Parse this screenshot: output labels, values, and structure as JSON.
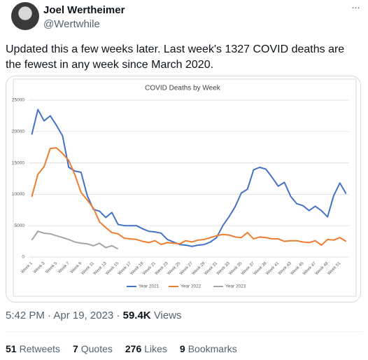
{
  "tweet": {
    "name": "Joel Wertheimer",
    "handle": "@Wertwhile",
    "more": "···",
    "text": "Updated this a few weeks later. Last week's 1327 COVID deaths are the fewest in any week since March 2020.",
    "time": "5:42 PM · Apr 19, 2023 ·",
    "views_count": "59.4K",
    "views_label": "Views",
    "stats": [
      {
        "count": "51",
        "label": "Retweets"
      },
      {
        "count": "7",
        "label": "Quotes"
      },
      {
        "count": "276",
        "label": "Likes"
      },
      {
        "count": "9",
        "label": "Bookmarks"
      }
    ]
  },
  "chart_data": {
    "type": "line",
    "title": "COVID Deaths by Week",
    "categories": [
      "Week 1",
      null,
      "Week 3",
      null,
      "Week 5",
      null,
      "Week 7",
      null,
      "Week 9",
      null,
      "Week 11",
      null,
      "Week 13",
      null,
      "Week 15",
      null,
      "Week 17",
      null,
      "Week 19",
      null,
      "Week 21",
      null,
      "Week 23",
      null,
      "Week 25",
      null,
      "Week 27",
      null,
      "Week 29",
      null,
      "Week 31",
      null,
      "Week 33",
      null,
      "Week 35",
      null,
      "Week 37",
      null,
      "Week 39",
      null,
      "Week 41",
      null,
      "Week 43",
      null,
      "Week 45",
      null,
      "Week 47",
      null,
      "Week 49",
      null,
      "Week 51",
      null
    ],
    "ylim": [
      0,
      25000
    ],
    "yticks": [
      0,
      5000,
      10000,
      15000,
      20000,
      25000
    ],
    "grid": true,
    "legend": "bottom",
    "series": [
      {
        "name": "Year 2021",
        "color": "#4472c4",
        "values": [
          19500,
          23500,
          21700,
          22500,
          21000,
          19300,
          14300,
          13700,
          13500,
          9800,
          7600,
          7300,
          6300,
          7100,
          5200,
          5000,
          5000,
          5000,
          4500,
          4100,
          4000,
          3800,
          2800,
          2400,
          2000,
          1900,
          1700,
          1900,
          2000,
          2400,
          3100,
          5000,
          6400,
          8000,
          10200,
          10800,
          13900,
          14300,
          14000,
          12700,
          11300,
          11900,
          9700,
          8500,
          8200,
          7400,
          8100,
          7400,
          6400,
          9800,
          11800,
          10100
        ]
      },
      {
        "name": "Year 2022",
        "color": "#ed7d31",
        "values": [
          9600,
          13200,
          14400,
          17300,
          17400,
          16500,
          15400,
          13100,
          10300,
          9100,
          7800,
          5600,
          4700,
          3900,
          3700,
          3000,
          2900,
          2800,
          2500,
          2300,
          2600,
          2000,
          2300,
          2200,
          2100,
          2600,
          2400,
          2700,
          2800,
          3100,
          3400,
          3600,
          3500,
          3200,
          3100,
          3900,
          2900,
          3200,
          3100,
          2900,
          2900,
          2500,
          2600,
          2600,
          2400,
          2300,
          2600,
          1900,
          2800,
          2700,
          3100,
          2500
        ]
      },
      {
        "name": "Year 2023",
        "color": "#a5a5a5",
        "values": [
          2700,
          4100,
          3800,
          3700,
          3400,
          3100,
          2800,
          2400,
          2200,
          2100,
          1800,
          2200,
          1500,
          1800,
          1300,
          null,
          null,
          null,
          null,
          null,
          null,
          null,
          null,
          null,
          null,
          null,
          null,
          null,
          null,
          null,
          null,
          null,
          null,
          null,
          null,
          null,
          null,
          null,
          null,
          null,
          null,
          null,
          null,
          null,
          null,
          null,
          null,
          null,
          null,
          null,
          null,
          null
        ]
      }
    ]
  }
}
